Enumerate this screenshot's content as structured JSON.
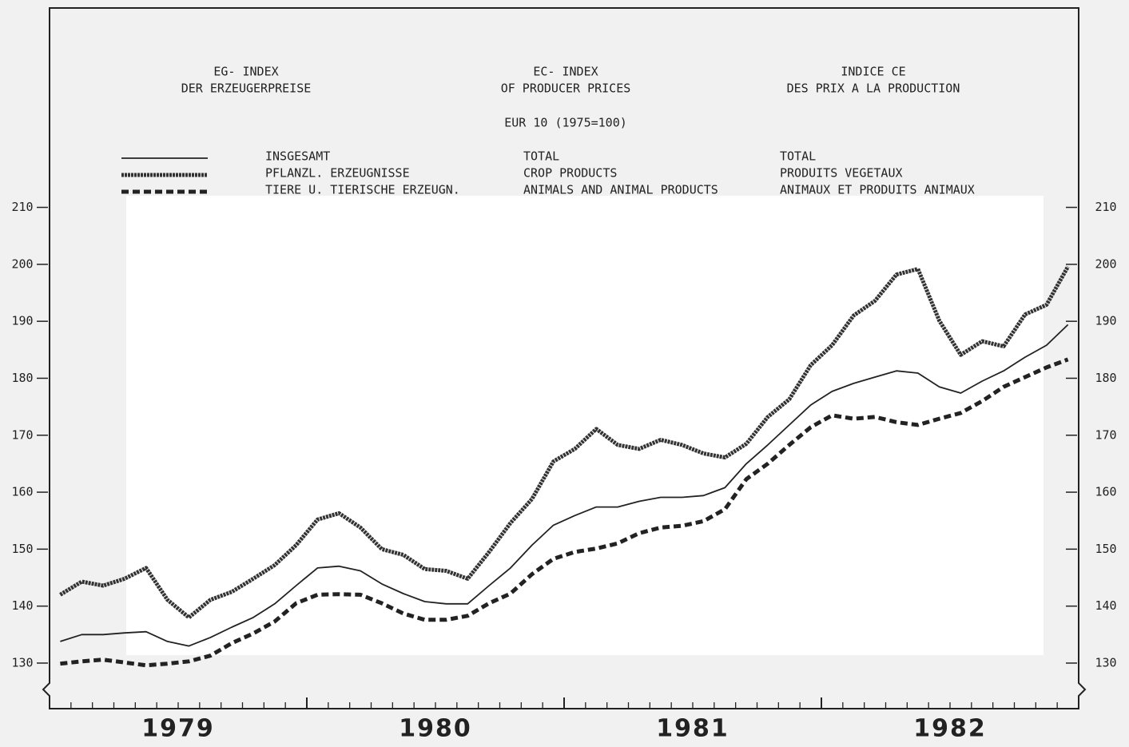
{
  "chart_data": {
    "type": "line",
    "title_de": [
      "EG- INDEX",
      "DER ERZEUGERPREISE"
    ],
    "title_en": [
      "EC- INDEX",
      "OF PRODUCER PRICES"
    ],
    "title_fr": [
      "INDICE CE",
      "DES PRIX A LA PRODUCTION"
    ],
    "subtitle": "EUR 10  (1975=100)",
    "year_labels": [
      "1979",
      "1980",
      "1981",
      "1982"
    ],
    "categories": [
      null,
      null,
      null,
      null,
      null,
      null,
      null,
      null,
      null,
      null,
      null,
      null,
      null,
      null,
      null,
      null,
      null,
      null,
      null,
      null,
      null,
      null,
      null,
      null,
      null,
      null,
      null,
      null,
      null,
      null,
      null,
      null,
      null,
      null,
      null,
      null,
      null,
      null,
      null,
      null,
      null,
      null,
      null,
      null,
      null,
      null,
      null,
      null
    ],
    "ylim": [
      122,
      245
    ],
    "yticks": [
      130,
      140,
      150,
      160,
      170,
      180,
      190,
      200,
      210
    ],
    "series": [
      {
        "name": "INSGESAMT",
        "name_en": "TOTAL",
        "name_fr": "TOTAL",
        "color": "#222",
        "style": "solid",
        "values": [
          133.8,
          135,
          135,
          135.3,
          135.5,
          133.8,
          133,
          134.5,
          136.3,
          138,
          140.4,
          143.6,
          146.7,
          147,
          146.2,
          143.9,
          142.2,
          140.8,
          140.4,
          140.4,
          143.6,
          146.7,
          150.7,
          154.2,
          155.9,
          157.4,
          157.4,
          158.4,
          159.1,
          159.1,
          159.4,
          160.8,
          165,
          168.3,
          171.8,
          175.3,
          177.7,
          179.1,
          180.2,
          181.3,
          180.9,
          178.5,
          177.4,
          179.5,
          181.3,
          183.7,
          185.8,
          189.4
        ]
      },
      {
        "name": "PFLANZL. ERZEUGNISSE",
        "name_en": "CROP PRODUCTS",
        "name_fr": "PRODUITS VEGETAUX",
        "color": "#333",
        "style": "thick",
        "values": [
          142,
          144.3,
          143.6,
          144.8,
          146.7,
          141.1,
          138,
          141.1,
          142.5,
          144.8,
          147.2,
          150.7,
          155.2,
          156.3,
          153.8,
          150,
          149,
          146.5,
          146.2,
          144.8,
          149.5,
          154.6,
          158.8,
          165.4,
          167.6,
          171.1,
          168.3,
          167.6,
          169.2,
          168.3,
          166.8,
          166.1,
          168.5,
          173.2,
          176.3,
          182.3,
          185.8,
          191,
          193.6,
          198.2,
          199.2,
          190.1,
          184.1,
          186.5,
          185.6,
          191.2,
          192.9,
          199.6
        ]
      },
      {
        "name": "TIERE U. TIERISCHE ERZEUGN.",
        "name_en": "ANIMALS AND ANIMAL PRODUCTS",
        "name_fr": "ANIMAUX ET PRODUITS ANIMAUX",
        "color": "#222",
        "style": "dashed",
        "values": [
          129.9,
          130.3,
          130.6,
          130.1,
          129.6,
          129.9,
          130.3,
          131.3,
          133.5,
          135.2,
          137.3,
          140.5,
          142,
          142.1,
          142,
          140.5,
          138.7,
          137.6,
          137.6,
          138.3,
          140.5,
          142.2,
          145.6,
          148.3,
          149.5,
          150.1,
          151,
          152.8,
          153.8,
          154.1,
          154.9,
          157,
          162.3,
          165,
          168.3,
          171.4,
          173.5,
          172.9,
          173.2,
          172.3,
          171.8,
          172.9,
          173.9,
          176,
          178.5,
          180.2,
          181.9,
          183.3
        ]
      }
    ]
  }
}
